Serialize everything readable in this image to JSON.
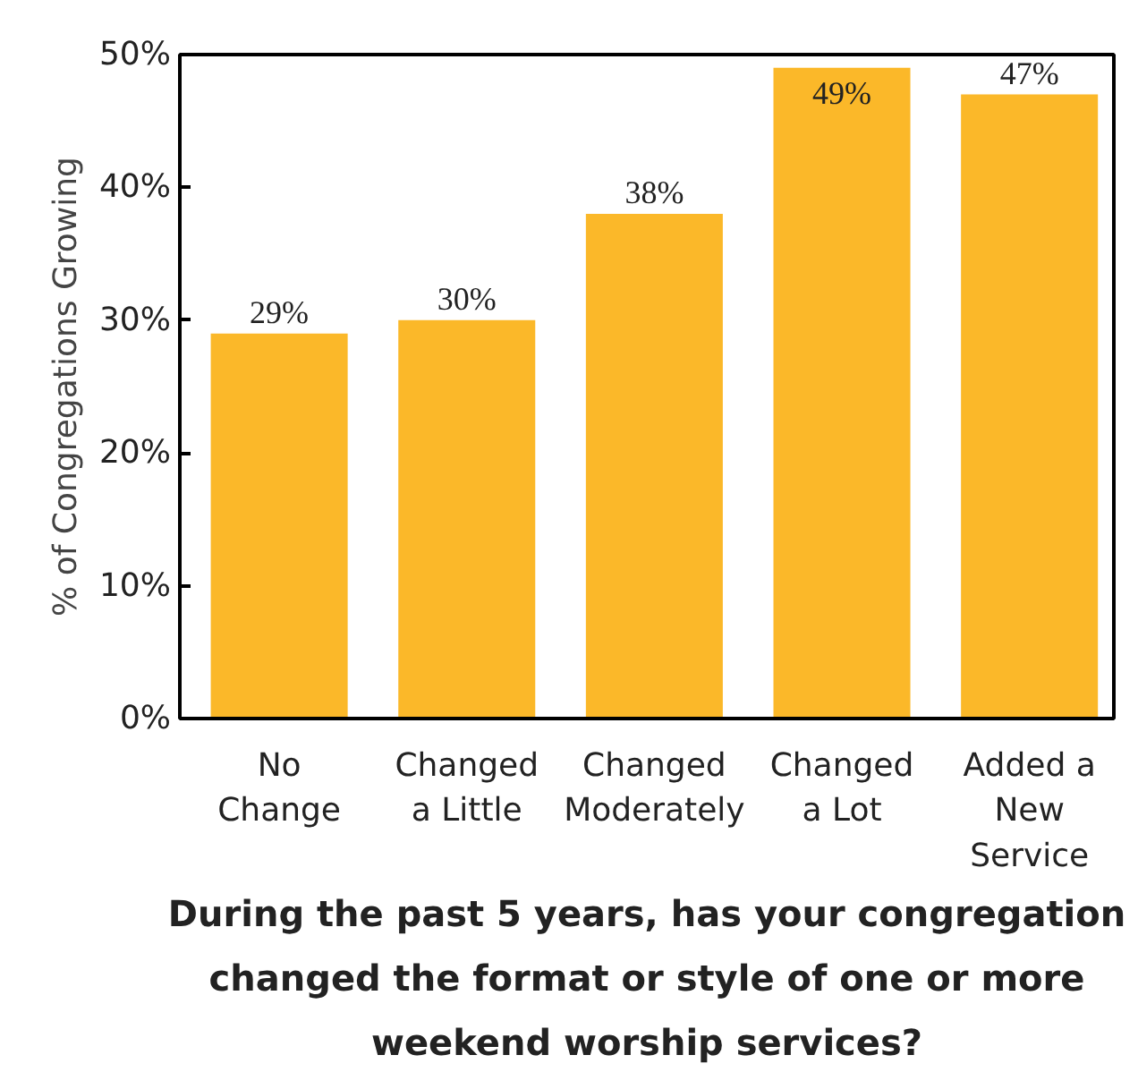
{
  "chart_data": {
    "type": "bar",
    "title": "During the past 5 years, has your congregation changed the format or style of one or more weekend worship services?",
    "ylabel": "% of Congregations Growing",
    "categories": [
      "No\nChange",
      "Changed\na Little",
      "Changed\nModerately",
      "Changed\na Lot",
      "Added a\nNew\nService"
    ],
    "values": [
      29,
      30,
      38,
      49,
      47
    ],
    "color": "#fbb829",
    "value_labels": [
      "29%",
      "30%",
      "38%",
      "49%",
      "47%"
    ],
    "ylim": [
      0,
      50
    ],
    "yticks": [
      {
        "value": 0,
        "label": "0%"
      },
      {
        "value": 10,
        "label": "10%"
      },
      {
        "value": 20,
        "label": "20%"
      },
      {
        "value": 30,
        "label": "30%"
      },
      {
        "value": 40,
        "label": "40%"
      },
      {
        "value": 50,
        "label": "50%"
      }
    ],
    "grid": false
  }
}
